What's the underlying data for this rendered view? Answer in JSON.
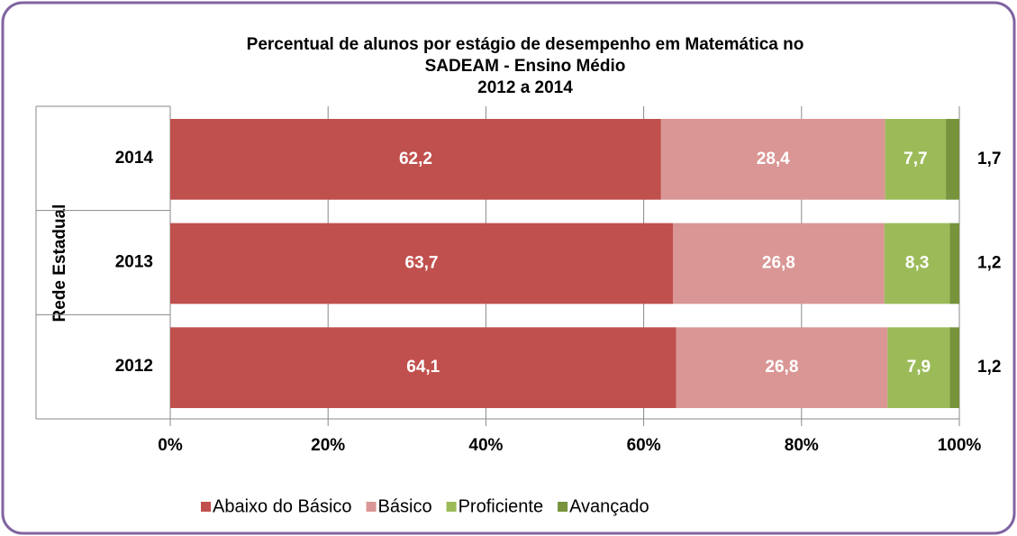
{
  "chart_data": {
    "type": "stacked-bar-horizontal",
    "title": [
      "Percentual de alunos por estágio de desempenho em Matemática no",
      "SADEAM - Ensino Médio",
      "2012 a 2014"
    ],
    "y_label": "Rede Estadual",
    "categories": [
      "2014",
      "2013",
      "2012"
    ],
    "series": [
      {
        "name": "Abaixo do Básico",
        "color": "#c0504d",
        "values": [
          62.2,
          63.7,
          64.1
        ],
        "value_labels": [
          "62,2",
          "63,7",
          "64,1"
        ]
      },
      {
        "name": "Básico",
        "color": "#d99694",
        "values": [
          28.4,
          26.8,
          26.8
        ],
        "value_labels": [
          "28,4",
          "26,8",
          "26,8"
        ]
      },
      {
        "name": "Proficiente",
        "color": "#9bbb59",
        "values": [
          7.7,
          8.3,
          7.9
        ],
        "value_labels": [
          "7,7",
          "8,3",
          "7,9"
        ]
      },
      {
        "name": "Avançado",
        "color": "#77933c",
        "values": [
          1.7,
          1.2,
          1.2
        ],
        "value_labels": [
          "1,7",
          "1,2",
          "1,2"
        ]
      }
    ],
    "xlim": [
      0,
      100
    ],
    "xticks": [
      {
        "value": 0,
        "label": "0%"
      },
      {
        "value": 20,
        "label": "20%"
      },
      {
        "value": 40,
        "label": "40%"
      },
      {
        "value": 60,
        "label": "60%"
      },
      {
        "value": 80,
        "label": "80%"
      },
      {
        "value": 100,
        "label": "100%"
      }
    ],
    "grid": true,
    "legend": "bottom"
  }
}
